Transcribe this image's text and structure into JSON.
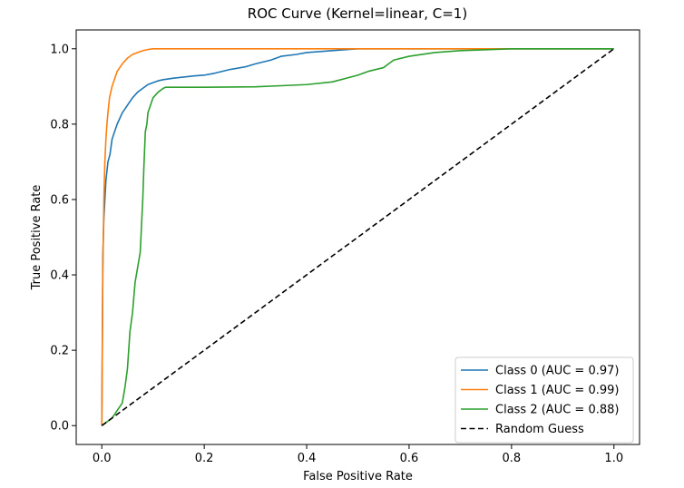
{
  "chart_data": {
    "type": "line",
    "title": "ROC Curve (Kernel=linear, C=1)",
    "xlabel": "False Positive Rate",
    "ylabel": "True Positive Rate",
    "xlim": [
      -0.05,
      1.05
    ],
    "ylim": [
      -0.05,
      1.05
    ],
    "xticks": [
      0.0,
      0.2,
      0.4,
      0.6,
      0.8,
      1.0
    ],
    "yticks": [
      0.0,
      0.2,
      0.4,
      0.6,
      0.8,
      1.0
    ],
    "xtick_labels": [
      "0.0",
      "0.2",
      "0.4",
      "0.6",
      "0.8",
      "1.0"
    ],
    "ytick_labels": [
      "0.0",
      "0.2",
      "0.4",
      "0.6",
      "0.8",
      "1.0"
    ],
    "grid": false,
    "legend_position": "bottom-right",
    "series": [
      {
        "name": "Class 0 (AUC = 0.97)",
        "color": "#1f77b4",
        "style": "solid",
        "x": [
          0,
          0.002,
          0.004,
          0.006,
          0.008,
          0.012,
          0.016,
          0.02,
          0.025,
          0.03,
          0.04,
          0.05,
          0.06,
          0.07,
          0.08,
          0.09,
          0.1,
          0.11,
          0.12,
          0.14,
          0.16,
          0.18,
          0.2,
          0.22,
          0.25,
          0.28,
          0.3,
          0.33,
          0.35,
          0.38,
          0.4,
          0.45,
          0.48,
          0.5,
          0.55,
          0.6,
          0.7,
          0.8,
          0.9,
          1.0
        ],
        "y": [
          0,
          0.45,
          0.55,
          0.6,
          0.65,
          0.7,
          0.72,
          0.76,
          0.78,
          0.8,
          0.83,
          0.85,
          0.87,
          0.885,
          0.895,
          0.905,
          0.91,
          0.915,
          0.918,
          0.922,
          0.925,
          0.928,
          0.93,
          0.935,
          0.945,
          0.952,
          0.96,
          0.97,
          0.98,
          0.985,
          0.99,
          0.995,
          0.998,
          1.0,
          1.0,
          1.0,
          1.0,
          1.0,
          1.0,
          1.0
        ]
      },
      {
        "name": "Class 1 (AUC = 0.99)",
        "color": "#ff7f0e",
        "style": "solid",
        "x": [
          0,
          0.002,
          0.004,
          0.006,
          0.008,
          0.01,
          0.012,
          0.015,
          0.02,
          0.025,
          0.03,
          0.035,
          0.04,
          0.05,
          0.06,
          0.07,
          0.08,
          0.09,
          0.1,
          0.2,
          0.4,
          0.6,
          0.8,
          1.0
        ],
        "y": [
          0,
          0.4,
          0.6,
          0.7,
          0.76,
          0.8,
          0.83,
          0.87,
          0.9,
          0.92,
          0.94,
          0.95,
          0.96,
          0.975,
          0.985,
          0.99,
          0.995,
          0.998,
          1.0,
          1.0,
          1.0,
          1.0,
          1.0,
          1.0
        ]
      },
      {
        "name": "Class 2 (AUC = 0.88)",
        "color": "#2ca02c",
        "style": "solid",
        "x": [
          0,
          0.01,
          0.02,
          0.03,
          0.04,
          0.045,
          0.05,
          0.055,
          0.06,
          0.065,
          0.07,
          0.075,
          0.08,
          0.082,
          0.085,
          0.088,
          0.09,
          0.095,
          0.1,
          0.11,
          0.12,
          0.125,
          0.13,
          0.2,
          0.3,
          0.35,
          0.4,
          0.45,
          0.5,
          0.52,
          0.55,
          0.56,
          0.57,
          0.6,
          0.65,
          0.7,
          0.8,
          0.9,
          1.0
        ],
        "y": [
          0,
          0.01,
          0.02,
          0.04,
          0.06,
          0.1,
          0.15,
          0.25,
          0.3,
          0.38,
          0.42,
          0.46,
          0.6,
          0.68,
          0.78,
          0.8,
          0.83,
          0.85,
          0.87,
          0.885,
          0.895,
          0.898,
          0.898,
          0.898,
          0.899,
          0.902,
          0.905,
          0.912,
          0.93,
          0.94,
          0.95,
          0.96,
          0.97,
          0.98,
          0.99,
          0.995,
          1.0,
          1.0,
          1.0
        ]
      },
      {
        "name": "Random Guess",
        "color": "#000000",
        "style": "dashed",
        "x": [
          0,
          1
        ],
        "y": [
          0,
          1
        ]
      }
    ]
  }
}
